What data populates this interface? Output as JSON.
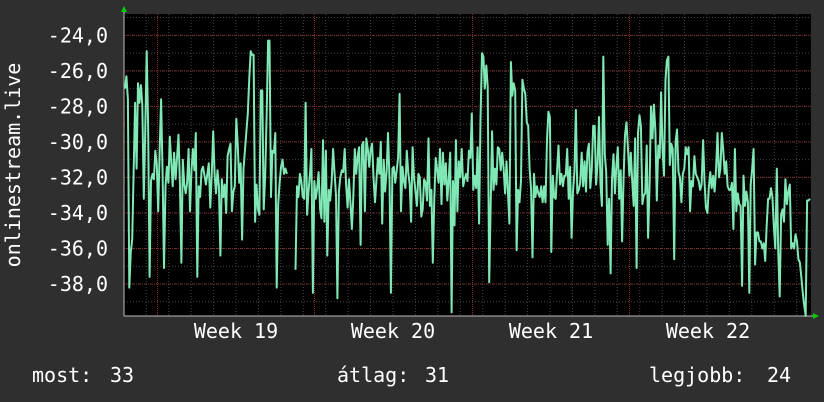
{
  "chart_data": {
    "type": "line",
    "ylabel": "onlinestream.live",
    "y_ticks": [
      "-24,0",
      "-26,0",
      "-28,0",
      "-30,0",
      "-32,0",
      "-34,0",
      "-36,0",
      "-38,0"
    ],
    "x_ticks": [
      "Week 19",
      "Week 20",
      "Week 21",
      "Week 22"
    ],
    "ylim": [
      -39.8,
      -22.8
    ],
    "grid": true,
    "colors": {
      "background": "#2f2f2f",
      "plot": "#000000",
      "line": "#7fe8b5",
      "grid_major": "#8a2a2a",
      "grid_minor": "#444444",
      "axis_arrow": "#00cc00"
    },
    "series": [
      {
        "values": [
          -27,
          -26.3,
          -27.6,
          -38.2,
          -36.2,
          -35.5,
          -31.5,
          -27.8,
          -31.5,
          -26.7,
          -27.8,
          -26.8,
          -27.9,
          -33.2,
          -29.5,
          -24.9,
          -29,
          -37.6,
          -32.2,
          -31.8,
          -32.1,
          -30.5,
          -31.3,
          -33.9,
          -30.4,
          -27.6,
          -31.8,
          -37.1,
          -32.5,
          -31.4,
          -32.3,
          -29.7,
          -31.1,
          -32.5,
          -30.6,
          -32.1,
          -30.9,
          -29.6,
          -32.3,
          -36.8,
          -31,
          -32.4,
          -32.9,
          -32.3,
          -30.4,
          -33.9,
          -31.6,
          -30.4,
          -31.6,
          -29.5,
          -37.6,
          -32.5,
          -33.1,
          -31.6,
          -31.4,
          -31.9,
          -32.4,
          -31.8,
          -31.2,
          -33.7,
          -31.9,
          -29.4,
          -31.8,
          -32.9,
          -31.6,
          -32.5,
          -36.4,
          -32.1,
          -33.1,
          -32.4,
          -34,
          -30.8,
          -30.4,
          -30.1,
          -33.9,
          -32.8,
          -32.5,
          -28.7,
          -30.1,
          -32.3,
          -31.2,
          -35.5,
          -31.5,
          -30.5,
          -29.4,
          -28.4,
          -26.4,
          -24.9,
          -25.1,
          -25.1,
          -34.5,
          -32.4,
          -33.8,
          -34.1,
          -27.1,
          -27.1,
          -33.8,
          -31.9,
          -28.6,
          -24.3,
          -24.3,
          -33.1,
          -30.5,
          -30.6,
          -29.5,
          -38.2,
          -33.5,
          -32.3,
          -31.4,
          -31,
          -31.8,
          -31.5,
          -31.8,
          null,
          null,
          null,
          null,
          null,
          -37.2,
          -32.5,
          -33.1,
          -31.8,
          -32.2,
          -33.1,
          -33.2,
          -27.8,
          -34.1,
          -32.8,
          -31.8,
          -30.4,
          -38.5,
          -32.2,
          -33.2,
          -32.6,
          -31.7,
          -33.8,
          -34.3,
          -29.9,
          -34.5,
          -30.5,
          -36.4,
          -32.7,
          -33.3,
          -32.2,
          -30.4,
          -31.7,
          -33,
          -38.8,
          -32.8,
          -32,
          -31.6,
          -31.7,
          -30.4,
          -32.4,
          -33.7,
          -32.1,
          -33.4,
          -34.9,
          -33.1,
          -30.4,
          -31.8,
          -30.8,
          -30.3,
          -35.8,
          -30.2,
          -30,
          -33.9,
          -29.8,
          -30.4,
          -31.4,
          -30.4,
          -30.1,
          -32.1,
          -33.4,
          -32.1,
          -30.9,
          -31.8,
          -30,
          -34.6,
          -31,
          -32.8,
          -31.7,
          -29.5,
          -32.1,
          -38.5,
          -31.5,
          -31.4,
          -32.3,
          -31.6,
          -30.9,
          -27.3,
          -33.9,
          -31.4,
          -32.2,
          -32.6,
          -30.5,
          -31.7,
          -32.4,
          -34.5,
          -30.3,
          -32,
          -32.8,
          -33.6,
          -31.8,
          -32,
          -34.2,
          -33.8,
          -32.1,
          -32.3,
          -33.3,
          -29.8,
          -33.6,
          -32.7,
          -36.8,
          -33.2,
          -30.9,
          -31.6,
          -32.3,
          -30.4,
          -33.5,
          -30.6,
          -32.4,
          -31.2,
          -33.3,
          -32.1,
          -30.6,
          -39.6,
          -32.2,
          -34.7,
          -29.9,
          -33.9,
          -31.1,
          -32,
          -30.4,
          -32.5,
          -32.1,
          -31.8,
          -32.2,
          -30.5,
          -30.9,
          -28.4,
          -32.7,
          -31.9,
          -32.6,
          -30.3,
          -34.6,
          -28.7,
          -25,
          -25.2,
          -27,
          -25.7,
          -26.9,
          -37.9,
          -33.8,
          -29.4,
          -32.7,
          -31.5,
          -32.4,
          -30.3,
          -30.4,
          -31.6,
          -30.6,
          -31.5,
          -32.9,
          -31.1,
          -32.9,
          -34.6,
          -25.5,
          -27.4,
          -26.7,
          -27.1,
          -36.1,
          -32.7,
          -33.4,
          -32.2,
          -26.5,
          -27,
          -27.3,
          -28.9,
          -29.1,
          -31.5,
          -32.7,
          -36.5,
          -31.8,
          -33.1,
          -32.5,
          -32.9,
          -33.1,
          -32.5,
          -33.4,
          -32.5,
          -33.4,
          -29.9,
          -28.3,
          -28.6,
          -36.2,
          -31.9,
          -33.1,
          -33.2,
          -31.6,
          -30.2,
          -32.4,
          -31.8,
          -32.5,
          -31.9,
          -31.9,
          -30.4,
          -33.2,
          -31.4,
          -35.4,
          -32.8,
          -31.7,
          -28.2,
          -32.9,
          -32.7,
          -32.3,
          -30.6,
          -32.5,
          -31.1,
          -32.8,
          -30.6,
          -30.1,
          -32.6,
          -31.5,
          -29.1,
          -29.1,
          -32.4,
          -31.2,
          -28.6,
          -32.4,
          -33.6,
          -25.2,
          -30.7,
          -31.7,
          -35.8,
          -33.2,
          -37.4,
          -32.1,
          -30.7,
          -32.9,
          -31.3,
          -30.3,
          -33.2,
          -31.6,
          -35.6,
          -32,
          -29.6,
          -28.9,
          -30.3,
          -31.9,
          -30.6,
          -32.2,
          -33.6,
          -29.8,
          -37.1,
          -29.5,
          -28.5,
          -29.1,
          -33.5,
          -33,
          -32.9,
          -30.2,
          -35.4,
          -32.4,
          -28,
          -29.8,
          -27.9,
          -29.4,
          -33.3,
          -30.2,
          -30.9,
          -27.2,
          -30.5,
          -31.9,
          -26.5,
          -25.4,
          -25.2,
          -31.3,
          -30.1,
          -30.4,
          -36.6,
          -30,
          -29.3,
          -31.7,
          -32,
          -33.4,
          -31.8,
          -31.5,
          -30.3,
          -30.7,
          -30.3,
          -33.9,
          -32.2,
          -32.5,
          -30.8,
          -31.8,
          -32,
          -32.2,
          -32.7,
          -32.4,
          -29.9,
          -32.2,
          -33.7,
          -34,
          -32.6,
          -31.7,
          -32.6,
          -31.9,
          -32.8,
          -31.5,
          -29.5,
          -32,
          -31.5,
          -29.5,
          -30.5,
          -31.8,
          -31.1,
          -32.5,
          -32.7,
          -32.7,
          -32.3,
          -34.9,
          -30.4,
          -33.9,
          -32.9,
          -33.5,
          -33.6,
          -38.1,
          -31.9,
          -33.6,
          -32.8,
          -33.4,
          -38.5,
          -32.4,
          -31.5,
          -30.4,
          -36.9,
          -35.1,
          -35.1,
          -35.6,
          -35.6,
          -36,
          -35.7,
          -36.7,
          -34.8,
          -33.2,
          -33.2,
          -32.6,
          -33.1,
          -34.8,
          -36,
          -31.5,
          -36.1,
          -38.7,
          -34.1,
          -33.8,
          -34.5,
          -32.1,
          -33.5,
          -32.8,
          -32.4,
          -36,
          -35.7,
          -36,
          -35.2,
          -35.6,
          -36.6,
          -36.8,
          -37.6,
          -38.5,
          -39.2,
          -39.8,
          -33.3,
          -33.3,
          -33.2
        ]
      }
    ],
    "stats": {
      "most_label": "most:",
      "most_value": "33",
      "avg_label": "átlag:",
      "avg_value": "31",
      "best_label": "legjobb:",
      "best_value": "24"
    }
  }
}
